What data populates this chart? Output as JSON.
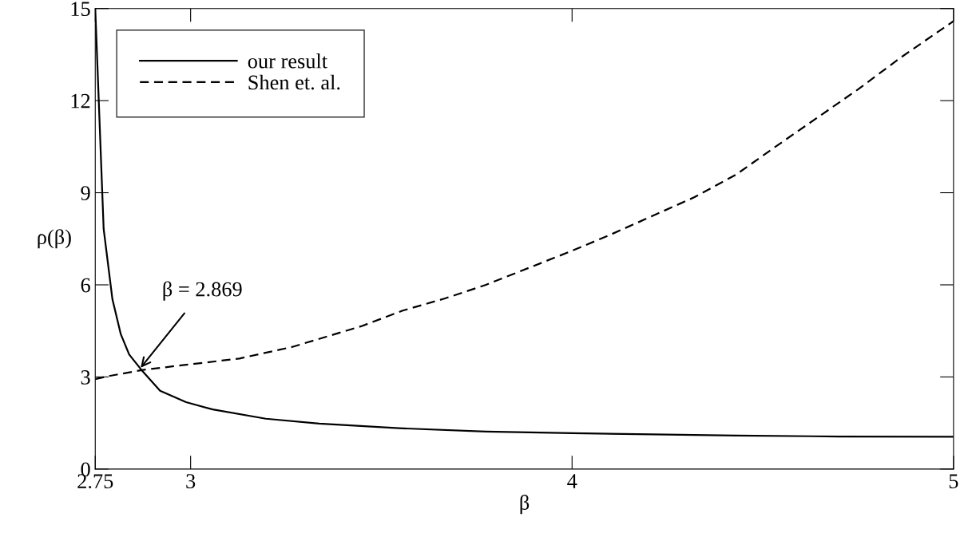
{
  "chart_data": {
    "type": "line",
    "xlabel": "β",
    "ylabel": "ρ(β)",
    "series": [
      {
        "name": "our result",
        "color": "#000000",
        "line_style": "solid",
        "x": [
          2.75,
          2.772,
          2.795,
          2.817,
          2.839,
          2.875,
          2.92,
          2.988,
          3.058,
          3.197,
          3.337,
          3.546,
          3.774,
          4.0,
          4.21,
          4.43,
          4.7,
          5.0
        ],
        "values": [
          15,
          7.82,
          5.53,
          4.39,
          3.73,
          3.17,
          2.55,
          2.18,
          1.94,
          1.64,
          1.48,
          1.33,
          1.22,
          1.17,
          1.13,
          1.09,
          1.06,
          1.05
        ]
      },
      {
        "name": "Shen et. al.",
        "color": "#000000",
        "line_style": "dashed",
        "x": [
          2.75,
          2.786,
          2.875,
          3.128,
          3.267,
          3.447,
          3.556,
          3.665,
          3.774,
          4.0,
          4.1,
          4.21,
          4.32,
          4.43,
          4.53,
          4.64,
          4.75,
          4.86,
          5.0
        ],
        "values": [
          2.93,
          3.03,
          3.23,
          3.6,
          3.98,
          4.65,
          5.16,
          5.55,
          6.0,
          7.11,
          7.63,
          8.24,
          8.85,
          9.59,
          10.47,
          11.42,
          12.37,
          13.39,
          14.59
        ]
      }
    ],
    "annotations": [
      {
        "text": "β = 2.869",
        "x": 2.869,
        "y": 3.3
      }
    ],
    "xlim": [
      2.75,
      5
    ],
    "ylim": [
      0,
      15
    ],
    "xticks": [
      2.75,
      3,
      4,
      5
    ],
    "yticks": [
      0,
      3,
      6,
      9,
      12,
      15
    ],
    "grid": false,
    "legend": "top left"
  }
}
